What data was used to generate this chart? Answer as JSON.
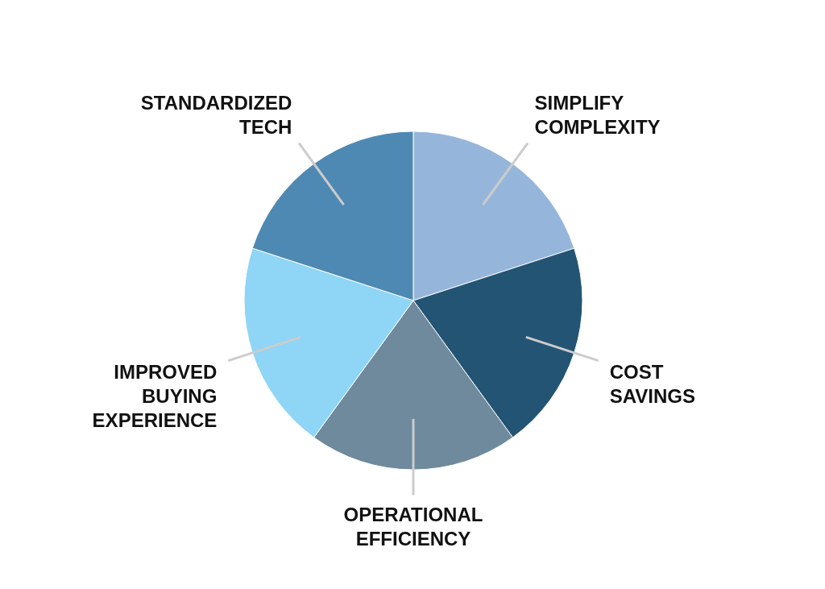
{
  "chart_data": {
    "type": "pie",
    "categories": [
      "SIMPLIFY COMPLEXITY",
      "COST SAVINGS",
      "OPERATIONAL EFFICIENCY",
      "IMPROVED BUYING EXPERIENCE",
      "STANDARDIZED TECH"
    ],
    "values": [
      20,
      20,
      20,
      20,
      20
    ],
    "colors": [
      "#95b6da",
      "#235474",
      "#6e8a9c",
      "#8fd5f5",
      "#4e89b3"
    ]
  }
}
